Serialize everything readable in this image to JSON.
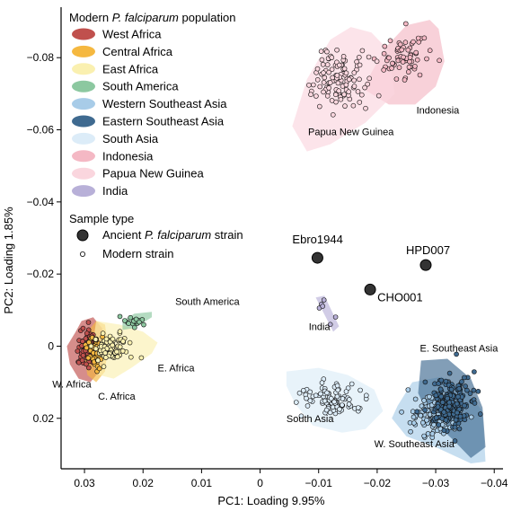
{
  "chart_data": {
    "type": "scatter",
    "xlabel": "PC1: Loading 9.95%",
    "ylabel": "PC2: Loading 1.85%",
    "xlim": [
      0.034,
      -0.0415
    ],
    "ylim": [
      -0.094,
      0.034
    ],
    "x_ticks": [
      0.03,
      0.02,
      0.01,
      0,
      -0.01,
      -0.02,
      -0.03,
      -0.04
    ],
    "x_tick_labels": [
      "0.03",
      "0.02",
      "0.01",
      "0",
      "−0.01",
      "−0.02",
      "−0.03",
      "−0.04"
    ],
    "y_ticks": [
      -0.08,
      -0.06,
      -0.04,
      -0.02,
      0,
      0.02
    ],
    "y_tick_labels": [
      "−0.08",
      "−0.06",
      "−0.04",
      "−0.02",
      "0",
      "0.02"
    ],
    "grid": false,
    "legend": {
      "placement": "top-left",
      "population_title_prefix": "Modern ",
      "population_title_species": "P. falciparum",
      "population_title_suffix": " population",
      "sample_type_title": "Sample type",
      "ancient_prefix": "Ancient ",
      "ancient_species": "P. falciparum",
      "ancient_suffix": " strain",
      "modern_label": "Modern strain"
    },
    "populations": [
      {
        "name": "West Africa",
        "color": "#c0504d",
        "fill": "#c0504d",
        "label": "W. Africa",
        "hull": [
          [
            0.0315,
            -0.004
          ],
          [
            0.0305,
            -0.007
          ],
          [
            0.0285,
            -0.008
          ],
          [
            0.027,
            -0.005
          ],
          [
            0.0265,
            0
          ],
          [
            0.027,
            0.006
          ],
          [
            0.029,
            0.01
          ],
          [
            0.031,
            0.009
          ],
          [
            0.0325,
            0.005
          ],
          [
            0.033,
            0
          ]
        ],
        "center": [
          0.0296,
          0.0005
        ],
        "spread": [
          0.0015,
          0.0045
        ],
        "count": 70
      },
      {
        "name": "Central Africa",
        "color": "#f0a830",
        "fill": "#f5b840",
        "label": "C. Africa",
        "hull": [
          [
            0.0295,
            -0.004
          ],
          [
            0.028,
            -0.007
          ],
          [
            0.0265,
            -0.006
          ],
          [
            0.026,
            0
          ],
          [
            0.0265,
            0.007
          ],
          [
            0.028,
            0.01
          ],
          [
            0.0295,
            0.008
          ],
          [
            0.03,
            0.003
          ]
        ],
        "center": [
          0.0283,
          0.001
        ],
        "spread": [
          0.0012,
          0.004
        ],
        "count": 45
      },
      {
        "name": "East Africa",
        "color": "#f0d870",
        "fill": "#faf0b0",
        "label": "E. Africa",
        "hull": [
          [
            0.028,
            -0.007
          ],
          [
            0.024,
            -0.006
          ],
          [
            0.02,
            -0.004
          ],
          [
            0.0175,
            -0.001
          ],
          [
            0.0185,
            0.002
          ],
          [
            0.022,
            0.006
          ],
          [
            0.025,
            0.009
          ],
          [
            0.0275,
            0.008
          ],
          [
            0.029,
            0.004
          ]
        ],
        "center": [
          0.0255,
          0.0008
        ],
        "spread": [
          0.0025,
          0.0035
        ],
        "count": 80
      },
      {
        "name": "South America",
        "color": "#3f8f5a",
        "fill": "#8cc8a0",
        "label": "South America",
        "hull": [
          [
            0.0235,
            -0.007
          ],
          [
            0.0215,
            -0.009
          ],
          [
            0.0185,
            -0.0095
          ],
          [
            0.0185,
            -0.008
          ],
          [
            0.0215,
            -0.005
          ],
          [
            0.0235,
            -0.0045
          ]
        ],
        "center": [
          0.0215,
          -0.0068
        ],
        "spread": [
          0.0015,
          0.0012
        ],
        "count": 18
      },
      {
        "name": "Western Southeast Asia",
        "color": "#4a88c8",
        "fill": "#a8cce8",
        "label": "W. Southeast Asia",
        "hull": [
          [
            -0.0235,
            0.0165
          ],
          [
            -0.026,
            0.01
          ],
          [
            -0.031,
            0.0085
          ],
          [
            -0.035,
            0.012
          ],
          [
            -0.038,
            0.018
          ],
          [
            -0.0385,
            0.032
          ],
          [
            -0.036,
            0.0325
          ],
          [
            -0.03,
            0.028
          ],
          [
            -0.025,
            0.025
          ],
          [
            -0.0225,
            0.02
          ]
        ],
        "center": [
          -0.03,
          0.019
        ],
        "spread": [
          0.0035,
          0.0045
        ],
        "count": 140
      },
      {
        "name": "Eastern Southeast Asia",
        "color": "#1e3f66",
        "fill": "#3f6a90",
        "label": "E. Southeast Asia",
        "hull": [
          [
            -0.0275,
            0.004
          ],
          [
            -0.032,
            0.0035
          ],
          [
            -0.036,
            0.009
          ],
          [
            -0.038,
            0.017
          ],
          [
            -0.0385,
            0.028
          ],
          [
            -0.036,
            0.031
          ],
          [
            -0.033,
            0.026
          ],
          [
            -0.029,
            0.02
          ],
          [
            -0.027,
            0.013
          ]
        ],
        "center": [
          -0.0325,
          0.0155
        ],
        "spread": [
          0.003,
          0.0055
        ],
        "count": 200
      },
      {
        "name": "South Asia",
        "color": "#7aa8d0",
        "fill": "#dcecf8",
        "label": "South Asia",
        "hull": [
          [
            -0.0045,
            0.007
          ],
          [
            -0.01,
            0.006
          ],
          [
            -0.015,
            0.008
          ],
          [
            -0.0195,
            0.012
          ],
          [
            -0.021,
            0.018
          ],
          [
            -0.018,
            0.023
          ],
          [
            -0.014,
            0.024
          ],
          [
            -0.009,
            0.022
          ],
          [
            -0.006,
            0.016
          ],
          [
            -0.0045,
            0.011
          ]
        ],
        "center": [
          -0.0125,
          0.0145
        ],
        "spread": [
          0.0045,
          0.004
        ],
        "count": 90
      },
      {
        "name": "Indonesia",
        "color": "#d88098",
        "fill": "#f4b8c4",
        "label": "Indonesia",
        "hull": [
          [
            -0.0175,
            -0.0715
          ],
          [
            -0.0215,
            -0.083
          ],
          [
            -0.025,
            -0.089
          ],
          [
            -0.029,
            -0.0905
          ],
          [
            -0.0305,
            -0.088
          ],
          [
            -0.0315,
            -0.079
          ],
          [
            -0.03,
            -0.072
          ],
          [
            -0.0265,
            -0.067
          ],
          [
            -0.022,
            -0.067
          ]
        ],
        "center": [
          -0.0245,
          -0.08
        ],
        "spread": [
          0.0035,
          0.0055
        ],
        "count": 65
      },
      {
        "name": "Papua New Guinea",
        "color": "#e8a8b8",
        "fill": "#fad6de",
        "label": "Papua New Guinea",
        "hull": [
          [
            -0.0055,
            -0.061
          ],
          [
            -0.008,
            -0.074
          ],
          [
            -0.012,
            -0.085
          ],
          [
            -0.0155,
            -0.0885
          ],
          [
            -0.019,
            -0.087
          ],
          [
            -0.022,
            -0.082
          ],
          [
            -0.023,
            -0.07
          ],
          [
            -0.018,
            -0.062
          ],
          [
            -0.012,
            -0.056
          ],
          [
            -0.008,
            -0.054
          ]
        ],
        "center": [
          -0.014,
          -0.074
        ],
        "spread": [
          0.004,
          0.007
        ],
        "count": 110
      },
      {
        "name": "India",
        "color": "#8c80b8",
        "fill": "#b8b0d8",
        "label": "India",
        "hull": [
          [
            -0.0095,
            -0.0135
          ],
          [
            -0.011,
            -0.014
          ],
          [
            -0.0135,
            -0.0055
          ],
          [
            -0.0125,
            -0.004
          ]
        ],
        "center": [
          -0.0115,
          -0.009
        ],
        "spread": [
          0.0012,
          0.004
        ],
        "count": 6
      }
    ],
    "ancient": [
      {
        "name": "Ebro1944",
        "x": -0.0098,
        "y": -0.0245
      },
      {
        "name": "HPD007",
        "x": -0.0283,
        "y": -0.0225
      },
      {
        "name": "CHO001",
        "x": -0.0188,
        "y": -0.0157
      }
    ],
    "annotations": [
      {
        "text": "South America",
        "x": 0.0145,
        "y": -0.0115
      },
      {
        "text": "E. Africa",
        "x": 0.0175,
        "y": 0.007
      },
      {
        "text": "W. Africa",
        "x": 0.0355,
        "y": 0.0115
      },
      {
        "text": "C. Africa",
        "x": 0.0277,
        "y": 0.0148
      },
      {
        "text": "India",
        "x": -0.0083,
        "y": -0.0045
      },
      {
        "text": "E. Southeast Asia",
        "x": -0.0273,
        "y": 0.0015
      },
      {
        "text": "South Asia",
        "x": -0.0045,
        "y": 0.021
      },
      {
        "text": "W. Southeast Asia",
        "x": -0.0195,
        "y": 0.028
      },
      {
        "text": "Indonesia",
        "x": -0.0267,
        "y": -0.0645
      },
      {
        "text": "Papua New Guinea",
        "x": -0.0082,
        "y": -0.0585
      }
    ]
  }
}
